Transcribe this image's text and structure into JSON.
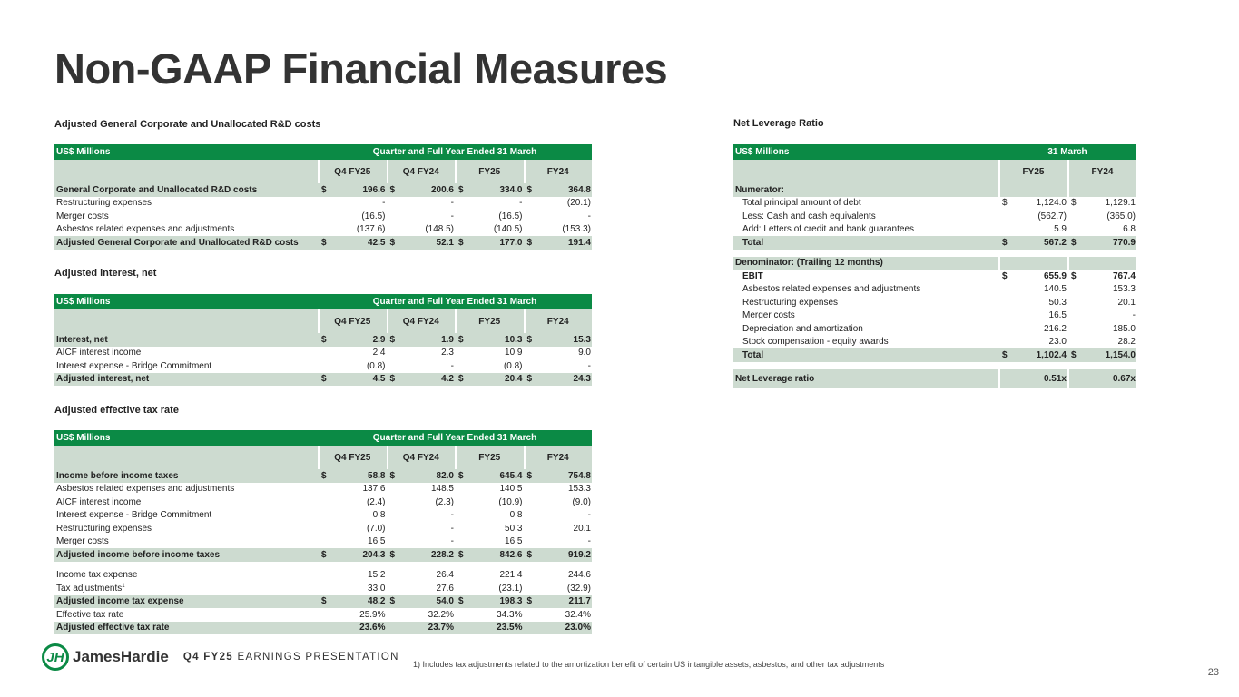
{
  "page_title": "Non-GAAP Financial Measures",
  "currency": "$",
  "tables": [
    {
      "id": "t1",
      "title": "Adjusted General Corporate and Unallocated R&D costs",
      "unit": "US$ Millions",
      "span": "Quarter and Full Year Ended 31 March",
      "columns": [
        "Q4 FY25",
        "Q4 FY24",
        "FY25",
        "FY24"
      ],
      "rows": [
        {
          "label": "General Corporate and Unallocated R&D costs",
          "vals": [
            "196.6",
            "200.6",
            "334.0",
            "364.8"
          ],
          "style": "total",
          "dollar": true
        },
        {
          "label": "Restructuring expenses",
          "vals": [
            "-",
            "-",
            "-",
            "(20.1)"
          ]
        },
        {
          "label": "Merger costs",
          "vals": [
            "(16.5)",
            "-",
            "(16.5)",
            "-"
          ]
        },
        {
          "label": "Asbestos related expenses and adjustments",
          "vals": [
            "(137.6)",
            "(148.5)",
            "(140.5)",
            "(153.3)"
          ]
        },
        {
          "label": "Adjusted General Corporate and Unallocated R&D costs",
          "vals": [
            "42.5",
            "52.1",
            "177.0",
            "191.4"
          ],
          "style": "total",
          "dollar": true
        }
      ]
    },
    {
      "id": "t2",
      "title": "Adjusted interest, net",
      "unit": "US$ Millions",
      "span": "Quarter and Full Year Ended 31 March",
      "columns": [
        "Q4 FY25",
        "Q4 FY24",
        "FY25",
        "FY24"
      ],
      "rows": [
        {
          "label": "Interest, net",
          "vals": [
            "2.9",
            "1.9",
            "10.3",
            "15.3"
          ],
          "style": "total",
          "dollar": true
        },
        {
          "label": "AICF interest income",
          "vals": [
            "2.4",
            "2.3",
            "10.9",
            "9.0"
          ]
        },
        {
          "label": "Interest expense - Bridge Commitment",
          "vals": [
            "(0.8)",
            "-",
            "(0.8)",
            "-"
          ]
        },
        {
          "label": "Adjusted interest, net",
          "vals": [
            "4.5",
            "4.2",
            "20.4",
            "24.3"
          ],
          "style": "total",
          "dollar": true
        }
      ]
    },
    {
      "id": "t3",
      "title": "Adjusted effective tax rate",
      "unit": "US$ Millions",
      "span": "Quarter and Full Year Ended 31 March",
      "columns": [
        "Q4 FY25",
        "Q4 FY24",
        "FY25",
        "FY24"
      ],
      "rows": [
        {
          "label": "Income before income taxes",
          "vals": [
            "58.8",
            "82.0",
            "645.4",
            "754.8"
          ],
          "style": "total",
          "dollar": true
        },
        {
          "label": "Asbestos related expenses and adjustments",
          "vals": [
            "137.6",
            "148.5",
            "140.5",
            "153.3"
          ]
        },
        {
          "label": "AICF interest income",
          "vals": [
            "(2.4)",
            "(2.3)",
            "(10.9)",
            "(9.0)"
          ]
        },
        {
          "label": "Interest expense - Bridge Commitment",
          "vals": [
            "0.8",
            "-",
            "0.8",
            "-"
          ]
        },
        {
          "label": "Restructuring expenses",
          "vals": [
            "(7.0)",
            "-",
            "50.3",
            "20.1"
          ]
        },
        {
          "label": "Merger costs",
          "vals": [
            "16.5",
            "-",
            "16.5",
            "-"
          ]
        },
        {
          "label": "Adjusted income before income taxes",
          "vals": [
            "204.3",
            "228.2",
            "842.6",
            "919.2"
          ],
          "style": "total",
          "dollar": true
        },
        {
          "style": "spacer"
        },
        {
          "label": "Income tax expense",
          "vals": [
            "15.2",
            "26.4",
            "221.4",
            "244.6"
          ]
        },
        {
          "label": "Tax adjustments",
          "sup": "1",
          "vals": [
            "33.0",
            "27.6",
            "(23.1)",
            "(32.9)"
          ]
        },
        {
          "label": "Adjusted income tax expense",
          "vals": [
            "48.2",
            "54.0",
            "198.3",
            "211.7"
          ],
          "style": "total",
          "dollar": true
        },
        {
          "label": "Effective tax rate",
          "vals": [
            "25.9%",
            "32.2%",
            "34.3%",
            "32.4%"
          ]
        },
        {
          "label": "Adjusted effective tax rate",
          "vals": [
            "23.6%",
            "23.7%",
            "23.5%",
            "23.0%"
          ],
          "style": "total"
        }
      ]
    },
    {
      "id": "t4",
      "title": "Net Leverage Ratio",
      "unit": "US$ Millions",
      "span": "31 March",
      "columns": [
        "FY25",
        "FY24"
      ],
      "rows": [
        {
          "label": "Numerator:",
          "vals": [
            "",
            ""
          ],
          "style": "section"
        },
        {
          "label": "Total principal amount of debt",
          "vals": [
            "1,124.0",
            "1,129.1"
          ],
          "dollar": true,
          "indent": true
        },
        {
          "label": "Less: Cash and cash equivalents",
          "vals": [
            "(562.7)",
            "(365.0)"
          ],
          "indent": true
        },
        {
          "label": "Add: Letters of credit and bank guarantees",
          "vals": [
            "5.9",
            "6.8"
          ],
          "indent": true
        },
        {
          "label": "Total",
          "vals": [
            "567.2",
            "770.9"
          ],
          "style": "total",
          "dollar": true,
          "indent": true
        },
        {
          "style": "spacer"
        },
        {
          "label": "Denominator: (Trailing 12 months)",
          "vals": [
            "",
            ""
          ],
          "style": "section"
        },
        {
          "label": "EBIT",
          "vals": [
            "655.9",
            "767.4"
          ],
          "dollar": true,
          "indent": true,
          "bold": true
        },
        {
          "label": "Asbestos related expenses and adjustments",
          "vals": [
            "140.5",
            "153.3"
          ],
          "indent": true
        },
        {
          "label": "Restructuring expenses",
          "vals": [
            "50.3",
            "20.1"
          ],
          "indent": true
        },
        {
          "label": "Merger costs",
          "vals": [
            "16.5",
            "-"
          ],
          "indent": true
        },
        {
          "label": "Depreciation and amortization",
          "vals": [
            "216.2",
            "185.0"
          ],
          "indent": true
        },
        {
          "label": "Stock compensation - equity awards",
          "vals": [
            "23.0",
            "28.2"
          ],
          "indent": true
        },
        {
          "label": "Total",
          "vals": [
            "1,102.4",
            "1,154.0"
          ],
          "style": "total",
          "dollar": true,
          "indent": true
        },
        {
          "style": "spacer"
        },
        {
          "label": "Net Leverage ratio",
          "vals": [
            "0.51x",
            "0.67x"
          ],
          "style": "big"
        }
      ]
    }
  ],
  "footer": {
    "brand": "JamesHardie",
    "logo_text": "JH",
    "pres_bold": "Q4 FY25",
    "pres_rest": "EARNINGS PRESENTATION",
    "footnote": "1) Includes tax adjustments related to the amortization benefit of certain US intangible assets, asbestos, and other tax adjustments",
    "page_number": "23"
  }
}
